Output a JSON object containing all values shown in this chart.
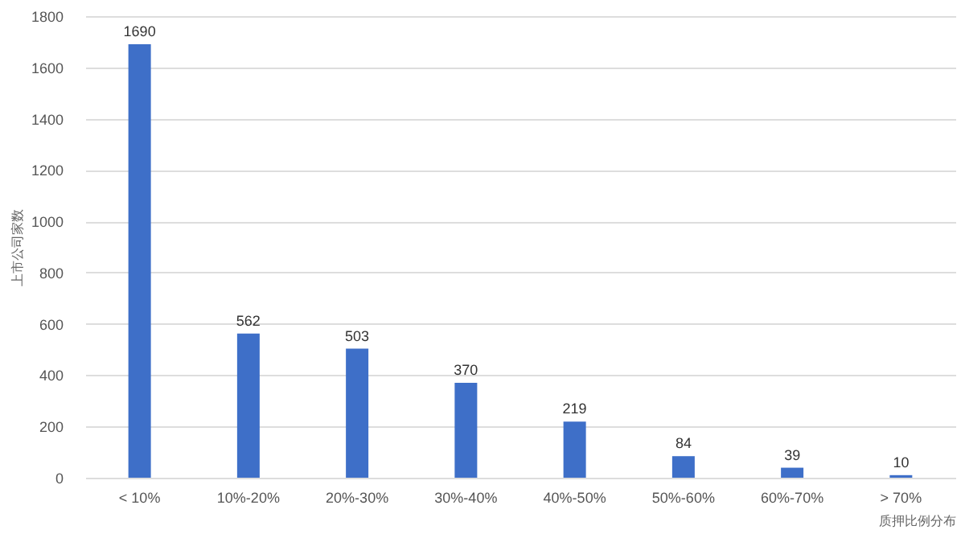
{
  "chart_data": {
    "type": "bar",
    "xlabel": "质押比例分布",
    "ylabel": "上市公司家数",
    "categories": [
      "< 10%",
      "10%-20%",
      "20%-30%",
      "30%-40%",
      "40%-50%",
      "50%-60%",
      "60%-70%",
      "> 70%"
    ],
    "values": [
      1690,
      562,
      503,
      370,
      219,
      84,
      39,
      10
    ],
    "color": "#3e6fc8",
    "ylim": [
      0,
      1800
    ],
    "yticks": [
      0,
      200,
      400,
      600,
      800,
      1000,
      1200,
      1400,
      1600,
      1800
    ],
    "grid": "y",
    "data_labels": true
  }
}
